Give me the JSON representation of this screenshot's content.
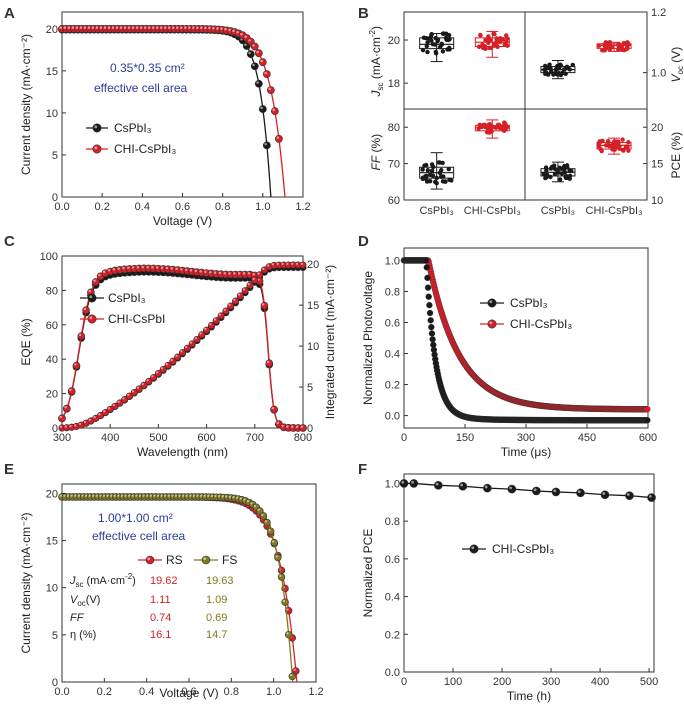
{
  "colors": {
    "black": "#1a1a1a",
    "red": "#d62028",
    "olive": "#7f7a1e",
    "blue": "#2c3e9a",
    "axis": "#333333"
  },
  "chart_data": [
    {
      "panel": "A",
      "type": "line",
      "xlabel": "Voltage (V)",
      "ylabel": "Current density (mA·cm⁻²)",
      "xlim": [
        0,
        1.2
      ],
      "ylim": [
        0,
        22
      ],
      "xticks": [
        "0.0",
        "0.2",
        "0.4",
        "0.6",
        "0.8",
        "1.0",
        "1.2"
      ],
      "yticks": [
        "0",
        "5",
        "10",
        "15",
        "20"
      ],
      "annotation": [
        "0.35*0.35 cm²",
        "effective cell area"
      ],
      "series": [
        {
          "name": "CsPbI₃",
          "color": "black",
          "jsc": 19.9,
          "voc": 1.04,
          "n": 1.9
        },
        {
          "name": "CHI-CsPbI₃",
          "color": "red",
          "jsc": 20.0,
          "voc": 1.11,
          "n": 1.55
        }
      ]
    },
    {
      "panel": "B",
      "type": "box",
      "ylabel_left_top": "Jsc (mA·cm⁻²)",
      "ylabel_right_top": "Voc (V)",
      "ylabel_left_bottom": "FF (%)",
      "ylabel_right_bottom": "PCE (%)",
      "categories": [
        "CsPbI₃",
        "CHI-CsPbI₃",
        "CsPbI₃",
        "CHI-CsPbI₃"
      ],
      "top_left": {
        "yticks": [
          "18",
          "20"
        ],
        "ylim": [
          16.8,
          21.3
        ],
        "boxes": [
          {
            "name": "CsPbI₃",
            "min": 19.0,
            "q1": 19.6,
            "median": 19.8,
            "q3": 20.1,
            "max": 20.3
          },
          {
            "name": "CHI-CsPbI₃",
            "min": 19.2,
            "q1": 19.7,
            "median": 19.9,
            "q3": 20.1,
            "max": 20.4
          }
        ]
      },
      "top_right": {
        "yticks": [
          "1.0",
          "1.2"
        ],
        "ylim": [
          0.88,
          1.2
        ],
        "boxes": [
          {
            "name": "CsPbI₃",
            "min": 0.98,
            "q1": 1.0,
            "median": 1.01,
            "q3": 1.02,
            "max": 1.04
          },
          {
            "name": "CHI-CsPbI₃",
            "min": 1.07,
            "q1": 1.08,
            "median": 1.09,
            "q3": 1.095,
            "max": 1.1
          }
        ]
      },
      "bottom_left": {
        "yticks": [
          "60",
          "70",
          "80"
        ],
        "ylim": [
          60,
          85
        ],
        "boxes": [
          {
            "name": "CsPbI₃",
            "min": 63,
            "q1": 66,
            "median": 67.5,
            "q3": 69,
            "max": 73
          },
          {
            "name": "CHI-CsPbI₃",
            "min": 77,
            "q1": 79,
            "median": 80,
            "q3": 80.5,
            "max": 82
          }
        ]
      },
      "bottom_right": {
        "yticks": [
          "10",
          "15",
          "20"
        ],
        "ylim": [
          10,
          22.5
        ],
        "boxes": [
          {
            "name": "CsPbI₃",
            "min": 12.5,
            "q1": 13.3,
            "median": 13.8,
            "q3": 14.3,
            "max": 15.2
          },
          {
            "name": "CHI-CsPbI₃",
            "min": 16.3,
            "q1": 17.0,
            "median": 17.5,
            "q3": 17.9,
            "max": 18.5
          }
        ]
      }
    },
    {
      "panel": "C",
      "type": "line",
      "xlabel": "Wavelength (nm)",
      "ylabel": "EQE (%)",
      "ylabel_right": "Integrated current (mA·cm⁻²)",
      "xlim": [
        300,
        800
      ],
      "ylim": [
        0,
        100
      ],
      "ylim_right": [
        0,
        21
      ],
      "xticks": [
        "300",
        "400",
        "500",
        "600",
        "700",
        "800"
      ],
      "yticks": [
        "0",
        "20",
        "40",
        "60",
        "80",
        "100"
      ],
      "yticks_right": [
        "0",
        "5",
        "10",
        "15",
        "20"
      ],
      "series": [
        {
          "name": "CsPbI₃",
          "color": "black",
          "eqe_plateau": 89,
          "integrated_final": 19.6
        },
        {
          "name": "CHI-CsPbI",
          "color": "red",
          "eqe_plateau": 91,
          "integrated_final": 19.9
        }
      ]
    },
    {
      "panel": "D",
      "type": "line",
      "xlabel": "Time (μs)",
      "ylabel": "Normalized Photovoltage",
      "xlim": [
        0,
        600
      ],
      "ylim": [
        -0.08,
        1.08
      ],
      "xticks": [
        "0",
        "150",
        "300",
        "450",
        "600"
      ],
      "yticks": [
        "0.0",
        "0.2",
        "0.4",
        "0.6",
        "0.8",
        "1.0"
      ],
      "series": [
        {
          "name": "CsPbI₃",
          "color": "black",
          "t0": 55,
          "tau": 22,
          "tail": 0.0
        },
        {
          "name": "CHI-CsPbI₃",
          "color": "red",
          "t0": 60,
          "tau": 75,
          "tail": 0.04
        }
      ]
    },
    {
      "panel": "E",
      "type": "line",
      "xlabel": "Voltage (V)",
      "ylabel": "Current density (mA·cm⁻²)",
      "xlim": [
        0,
        1.2
      ],
      "ylim": [
        0,
        21
      ],
      "xticks": [
        "0.0",
        "0.2",
        "0.4",
        "0.6",
        "0.8",
        "1.0",
        "1.2"
      ],
      "yticks": [
        "0",
        "5",
        "10",
        "15",
        "20"
      ],
      "annotation": [
        "1.00*1.00 cm²",
        "effective cell area"
      ],
      "series": [
        {
          "name": "RS",
          "color": "red",
          "jsc": 19.62,
          "voc": 1.11,
          "n": 1.7
        },
        {
          "name": "FS",
          "color": "olive",
          "jsc": 19.63,
          "voc": 1.09,
          "n": 2.1
        }
      ],
      "table": {
        "rows": [
          {
            "label": "Jsc (mA·cm⁻²)",
            "rs": "19.62",
            "fs": "19.63"
          },
          {
            "label": "Voc(V)",
            "rs": "1.11",
            "fs": "1.09"
          },
          {
            "label": "FF",
            "rs": "0.74",
            "fs": "0.69"
          },
          {
            "label": "η (%)",
            "rs": "16.1",
            "fs": "14.7"
          }
        ]
      }
    },
    {
      "panel": "F",
      "type": "line",
      "xlabel": "Time (h)",
      "ylabel": "Normalized PCE",
      "xlim": [
        0,
        510
      ],
      "ylim": [
        0,
        1.05
      ],
      "xticks": [
        "0",
        "100",
        "200",
        "300",
        "400",
        "500"
      ],
      "yticks": [
        "0.0",
        "0.2",
        "0.4",
        "0.6",
        "0.8",
        "1.0"
      ],
      "series": [
        {
          "name": "CHI-CsPbI₃",
          "color": "black",
          "x": [
            0,
            20,
            70,
            120,
            170,
            220,
            270,
            310,
            360,
            410,
            460,
            505
          ],
          "y": [
            1.0,
            1.0,
            0.99,
            0.985,
            0.975,
            0.97,
            0.96,
            0.955,
            0.95,
            0.94,
            0.935,
            0.925
          ]
        }
      ]
    }
  ]
}
